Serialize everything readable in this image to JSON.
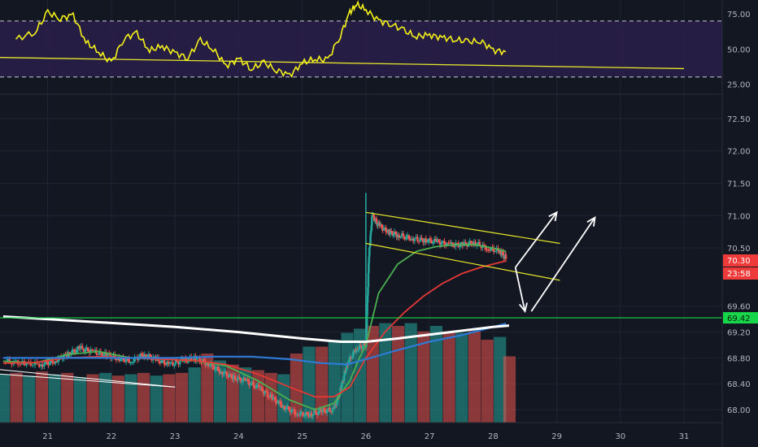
{
  "colors": {
    "background": "#131722",
    "grid": "#1f2433",
    "axis_text": "#b2b5be",
    "rsi_line": "#f5f21a",
    "rsi_band": "#2a1f4a",
    "candle_up": "#26a69a",
    "candle_down": "#ef5350",
    "ma_green": "#4caf50",
    "ma_red": "#e53935",
    "ma_blue": "#2e7bd6",
    "ma_white": "#ffffff",
    "channel": "#e6e62a",
    "support": "#18d64a",
    "arrow": "#ffffff",
    "price_tag": "#ef3a3a",
    "support_tag": "#18d64a"
  },
  "chart_data": [
    {
      "type": "line",
      "panel": "oscillator",
      "y_ticks": [
        "75.00",
        "50.00",
        "25.00"
      ],
      "ylim": [
        20,
        85
      ],
      "band_levels": [
        70,
        30
      ],
      "x": [
        20.5,
        20.8,
        21.0,
        21.2,
        21.4,
        21.6,
        21.8,
        22.0,
        22.2,
        22.4,
        22.6,
        22.8,
        23.0,
        23.2,
        23.4,
        23.6,
        23.8,
        24.0,
        24.2,
        24.4,
        24.6,
        24.8,
        25.0,
        25.2,
        25.4,
        25.6,
        25.75,
        25.85,
        26.0,
        26.2,
        26.4,
        26.6,
        26.8,
        27.0,
        27.2,
        27.4,
        27.6,
        27.8,
        28.0,
        28.2
      ],
      "values": [
        57,
        62,
        76,
        72,
        74,
        55,
        48,
        40,
        58,
        61,
        49,
        52,
        47,
        44,
        56,
        50,
        38,
        43,
        36,
        40,
        35,
        31,
        40,
        43,
        42,
        60,
        76,
        82,
        78,
        70,
        68,
        63,
        59,
        60,
        58,
        57,
        55,
        56,
        49,
        48
      ],
      "trendline": {
        "x": [
          20.2,
          31.0
        ],
        "y": [
          44,
          36
        ]
      }
    },
    {
      "type": "line",
      "panel": "price",
      "y_ticks": [
        "72.50",
        "72.00",
        "71.50",
        "71.00",
        "70.50",
        "69.60",
        "69.20",
        "68.80",
        "68.40",
        "68.00"
      ],
      "ylim": [
        67.8,
        72.8
      ],
      "x_ticks": [
        "21",
        "22",
        "23",
        "24",
        "25",
        "26",
        "27",
        "28",
        "29",
        "30",
        "31"
      ],
      "xlim": [
        20.25,
        31.6
      ],
      "price_tag": "70.30",
      "timer_tag": "23:58",
      "support_tag": "69.42",
      "support_level": 69.42,
      "close_series": {
        "x": [
          20.3,
          20.6,
          20.9,
          21.1,
          21.3,
          21.5,
          21.7,
          21.9,
          22.1,
          22.3,
          22.5,
          22.7,
          22.9,
          23.1,
          23.3,
          23.5,
          23.7,
          23.9,
          24.1,
          24.3,
          24.5,
          24.7,
          24.9,
          25.1,
          25.3,
          25.5,
          25.6,
          25.7,
          25.85,
          26.0,
          26.05,
          26.1,
          26.2,
          26.35,
          26.5,
          26.7,
          26.9,
          27.1,
          27.3,
          27.5,
          27.7,
          27.9,
          28.1,
          28.2
        ],
        "values": [
          68.75,
          68.72,
          68.7,
          68.75,
          68.85,
          68.95,
          68.9,
          68.85,
          68.8,
          68.75,
          68.85,
          68.78,
          68.7,
          68.75,
          68.8,
          68.72,
          68.6,
          68.5,
          68.45,
          68.35,
          68.2,
          68.05,
          67.95,
          67.92,
          67.98,
          68.0,
          68.3,
          68.7,
          68.95,
          69.0,
          70.4,
          71.0,
          70.85,
          70.75,
          70.7,
          70.65,
          70.62,
          70.6,
          70.55,
          70.55,
          70.58,
          70.5,
          70.45,
          70.35
        ]
      },
      "series": [
        {
          "color": "green",
          "x": [
            20.3,
            20.8,
            21.3,
            21.8,
            22.3,
            22.8,
            23.3,
            23.8,
            24.3,
            24.8,
            25.2,
            25.5,
            25.75,
            25.9,
            26.0,
            26.2,
            26.5,
            26.8,
            27.1,
            27.4,
            27.7,
            28.0,
            28.2
          ],
          "values": [
            68.75,
            68.72,
            68.85,
            68.9,
            68.8,
            68.78,
            68.76,
            68.68,
            68.45,
            68.15,
            68.0,
            68.1,
            68.45,
            68.8,
            69.0,
            69.8,
            70.25,
            70.45,
            70.52,
            70.55,
            70.55,
            70.5,
            70.45
          ]
        },
        {
          "color": "red",
          "x": [
            20.3,
            20.8,
            21.3,
            21.8,
            22.3,
            22.8,
            23.3,
            23.8,
            24.3,
            24.8,
            25.2,
            25.5,
            25.75,
            26.0,
            26.3,
            26.6,
            26.9,
            27.2,
            27.5,
            27.8,
            28.0,
            28.2
          ],
          "values": [
            68.72,
            68.73,
            68.8,
            68.82,
            68.8,
            68.78,
            68.76,
            68.7,
            68.55,
            68.35,
            68.2,
            68.2,
            68.35,
            68.8,
            69.2,
            69.5,
            69.75,
            69.95,
            70.1,
            70.2,
            70.25,
            70.3
          ]
        },
        {
          "color": "blue",
          "x": [
            20.3,
            21.0,
            22.0,
            23.0,
            23.6,
            24.2,
            24.8,
            25.3,
            25.7,
            26.0,
            26.5,
            27.0,
            27.5,
            28.0,
            28.2
          ],
          "values": [
            68.8,
            68.8,
            68.8,
            68.8,
            68.82,
            68.82,
            68.78,
            68.72,
            68.7,
            68.78,
            68.92,
            69.05,
            69.15,
            69.28,
            69.33
          ]
        },
        {
          "color": "white",
          "x": [
            20.3,
            21.0,
            22.0,
            23.0,
            24.0,
            25.0,
            25.6,
            26.0,
            26.5,
            27.0,
            27.5,
            28.0,
            28.25
          ],
          "values": [
            69.44,
            69.4,
            69.34,
            69.28,
            69.2,
            69.1,
            69.05,
            69.05,
            69.1,
            69.16,
            69.22,
            69.28,
            69.3
          ]
        }
      ],
      "volume": {
        "x": [
          20.3,
          20.5,
          20.7,
          20.9,
          21.1,
          21.3,
          21.5,
          21.7,
          21.9,
          22.1,
          22.3,
          22.5,
          22.7,
          22.9,
          23.1,
          23.3,
          23.5,
          23.7,
          23.9,
          24.1,
          24.3,
          24.5,
          24.7,
          24.9,
          25.1,
          25.3,
          25.5,
          25.7,
          25.9,
          26.1,
          26.3,
          26.5,
          26.7,
          26.9,
          27.1,
          27.3,
          27.5,
          27.7,
          27.9,
          28.1,
          28.25
        ],
        "values": [
          0.35,
          0.36,
          0.34,
          0.37,
          0.35,
          0.36,
          0.33,
          0.35,
          0.36,
          0.34,
          0.35,
          0.36,
          0.34,
          0.35,
          0.36,
          0.4,
          0.5,
          0.45,
          0.42,
          0.4,
          0.38,
          0.36,
          0.35,
          0.5,
          0.55,
          0.55,
          0.6,
          0.65,
          0.68,
          0.7,
          0.72,
          0.7,
          0.72,
          0.66,
          0.7,
          0.66,
          0.65,
          0.66,
          0.6,
          0.62,
          0.48
        ],
        "up": [
          true,
          false,
          true,
          false,
          true,
          false,
          true,
          false,
          true,
          false,
          true,
          false,
          true,
          false,
          false,
          true,
          false,
          true,
          false,
          true,
          false,
          false,
          true,
          false,
          true,
          false,
          true,
          true,
          true,
          false,
          true,
          false,
          true,
          false,
          true,
          false,
          true,
          false,
          false,
          true,
          false
        ]
      },
      "channel": {
        "upper": {
          "x": [
            26.0,
            29.05
          ],
          "y": [
            71.05,
            70.57
          ]
        },
        "lower": {
          "x": [
            26.0,
            29.05
          ],
          "y": [
            70.57,
            70.0
          ]
        }
      },
      "arrows": [
        {
          "x": [
            28.35,
            29.0
          ],
          "y": [
            70.2,
            71.05
          ]
        },
        {
          "x": [
            28.35,
            28.5
          ],
          "y": [
            70.2,
            69.52
          ]
        },
        {
          "x": [
            28.6,
            29.6
          ],
          "y": [
            69.52,
            70.97
          ]
        }
      ]
    }
  ]
}
